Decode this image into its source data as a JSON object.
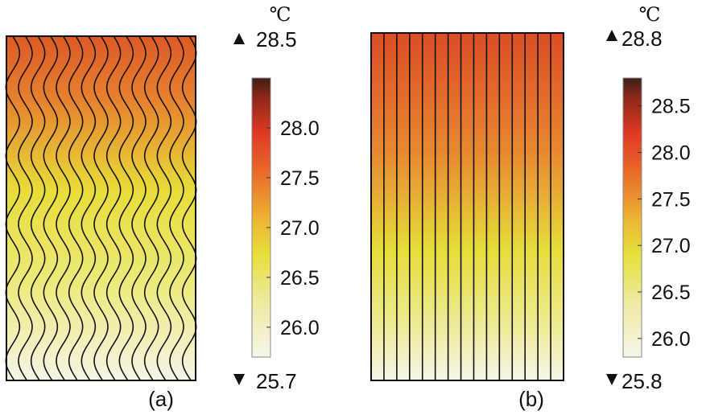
{
  "panels": [
    {
      "id": "a",
      "caption": "(a)",
      "channel_style": "wavy",
      "channel_count": 15,
      "temperature_field": {
        "top_color": "#dd5a26",
        "mid_color": "#e8dd3a",
        "bottom_color": "#f6f4e6"
      },
      "colorbar": {
        "unit": "℃",
        "max_label": "28.5",
        "min_label": "25.7",
        "min": 25.7,
        "max": 28.5,
        "ticks": [
          "28.0",
          "27.5",
          "27.0",
          "26.5",
          "26.0"
        ]
      }
    },
    {
      "id": "b",
      "caption": "(b)",
      "channel_style": "straight",
      "channel_count": 15,
      "temperature_field": {
        "top_color": "#dc4d25",
        "mid_color": "#e6dc3a",
        "bottom_color": "#f7f5ea"
      },
      "colorbar": {
        "unit": "℃",
        "max_label": "28.8",
        "min_label": "25.8",
        "min": 25.8,
        "max": 28.8,
        "ticks": [
          "28.5",
          "28.0",
          "27.5",
          "27.0",
          "26.5",
          "26.0"
        ]
      }
    }
  ],
  "colormap": [
    "#f7f5ea",
    "#eeeaa0",
    "#e6df3a",
    "#edb235",
    "#e96f2a",
    "#df3b24",
    "#8e2619",
    "#3c1f16"
  ],
  "max_marker_icon": "triangle-up-icon",
  "min_marker_icon": "triangle-down-icon"
}
